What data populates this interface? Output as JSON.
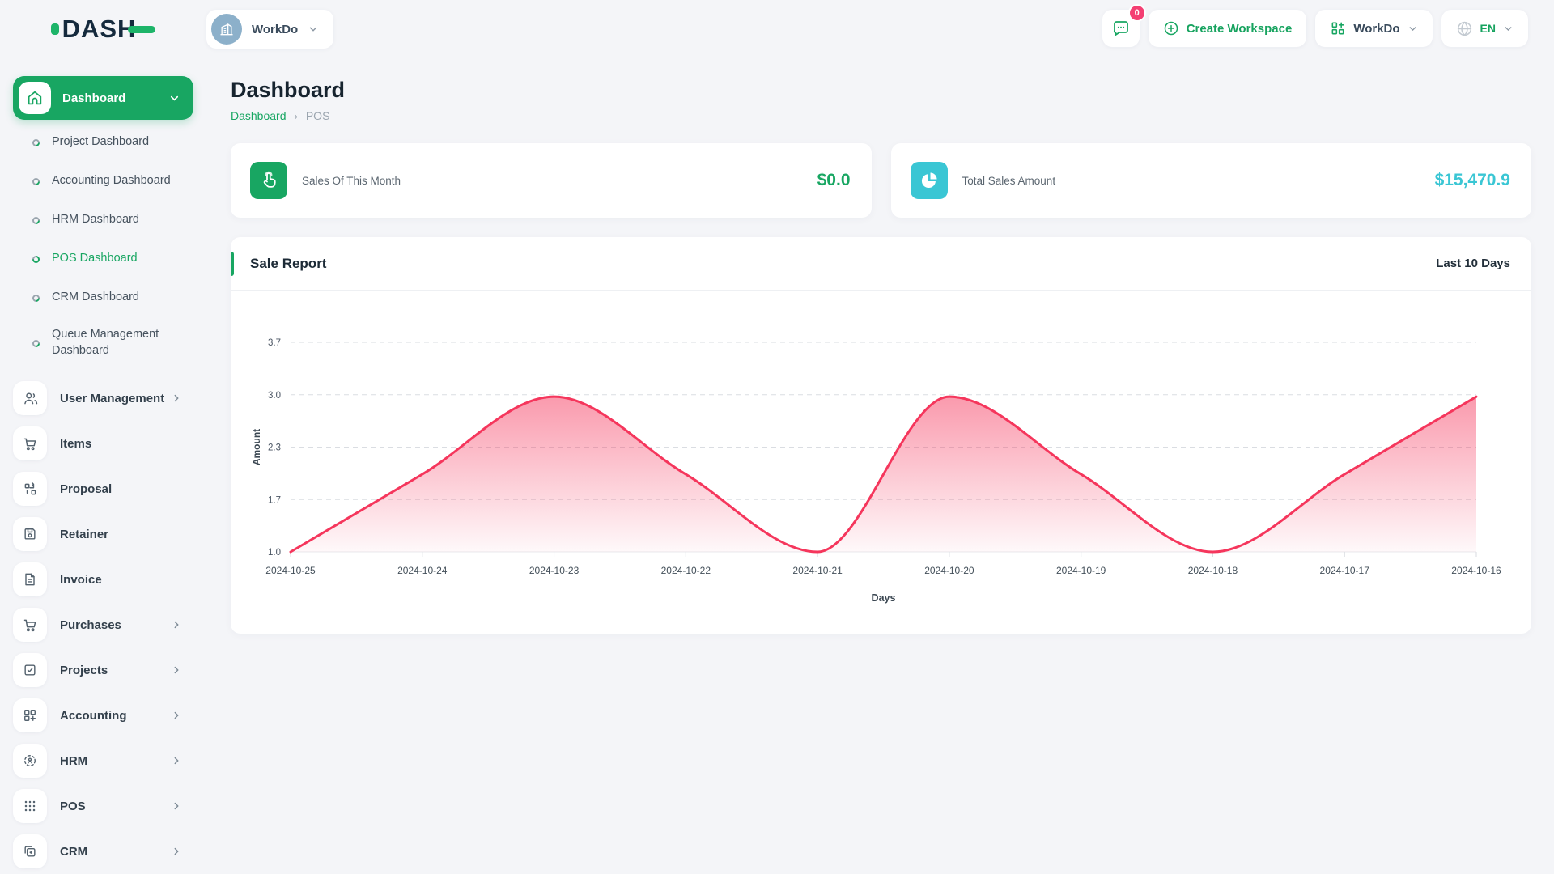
{
  "brand": {
    "name": "DASH"
  },
  "topbar": {
    "workspace_button": {
      "label": "WorkDo",
      "icon": "building-icon"
    },
    "messages": {
      "icon": "chat-bubble-icon",
      "badge": "0"
    },
    "create_workspace": {
      "label": "Create Workspace",
      "icon": "plus-circle-icon"
    },
    "workspace_switcher": {
      "label": "WorkDo",
      "icon": "grid-plus-icon"
    },
    "language": {
      "label": "EN",
      "icon": "globe-icon"
    }
  },
  "sidebar": {
    "dashboard_group": {
      "label": "Dashboard",
      "icon": "home-icon"
    },
    "children": [
      {
        "label": "Project Dashboard",
        "active": false
      },
      {
        "label": "Accounting Dashboard",
        "active": false
      },
      {
        "label": "HRM Dashboard",
        "active": false
      },
      {
        "label": "POS Dashboard",
        "active": true
      },
      {
        "label": "CRM Dashboard",
        "active": false
      },
      {
        "label": "Queue Management Dashboard",
        "active": false
      }
    ],
    "items": [
      {
        "label": "User Management",
        "icon": "users-icon",
        "chevron": true
      },
      {
        "label": "Items",
        "icon": "cart-icon",
        "chevron": false
      },
      {
        "label": "Proposal",
        "icon": "flow-icon",
        "chevron": false
      },
      {
        "label": "Retainer",
        "icon": "save-icon",
        "chevron": false
      },
      {
        "label": "Invoice",
        "icon": "document-icon",
        "chevron": false
      },
      {
        "label": "Purchases",
        "icon": "cart-icon",
        "chevron": true
      },
      {
        "label": "Projects",
        "icon": "check-square-icon",
        "chevron": true
      },
      {
        "label": "Accounting",
        "icon": "grid-plus-icon",
        "chevron": true
      },
      {
        "label": "HRM",
        "icon": "person-target-icon",
        "chevron": true
      },
      {
        "label": "POS",
        "icon": "dots-grid-icon",
        "chevron": true
      },
      {
        "label": "CRM",
        "icon": "overlap-squares-icon",
        "chevron": true
      }
    ]
  },
  "page": {
    "title": "Dashboard",
    "breadcrumb": {
      "items": [
        "Dashboard",
        "POS"
      ]
    }
  },
  "stats": [
    {
      "label": "Sales Of This Month",
      "value": "$0.0",
      "icon": "tap-icon",
      "accent": "#18a662"
    },
    {
      "label": "Total Sales Amount",
      "value": "$15,470.9",
      "icon": "pie-chart-icon",
      "accent": "#3ac6d4"
    }
  ],
  "colors": {
    "primary_green": "#18a662",
    "cyan": "#3ac6d4",
    "chart_pink": "#f5365c",
    "badge_pink": "#f43f73"
  },
  "chart_data": {
    "type": "area",
    "title": "Sale Report",
    "period_label": "Last 10 Days",
    "x": [
      "2024-10-25",
      "2024-10-24",
      "2024-10-23",
      "2024-10-22",
      "2024-10-21",
      "2024-10-20",
      "2024-10-19",
      "2024-10-18",
      "2024-10-17",
      "2024-10-16"
    ],
    "values": [
      1.0,
      2.0,
      3.0,
      2.0,
      1.0,
      3.0,
      2.0,
      1.0,
      2.0,
      3.0
    ],
    "xlabel": "Days",
    "ylabel": "Amount",
    "ytick_labels": [
      "1.0",
      "1.7",
      "2.3",
      "3.0",
      "3.7"
    ],
    "ylim": [
      1.0,
      3.7
    ],
    "grid": "dashed-horizontal",
    "legend": "none",
    "line_color": "#f5365c",
    "fill_gradient": [
      "rgba(245,54,92,0.5)",
      "rgba(245,54,92,0.03)"
    ]
  }
}
